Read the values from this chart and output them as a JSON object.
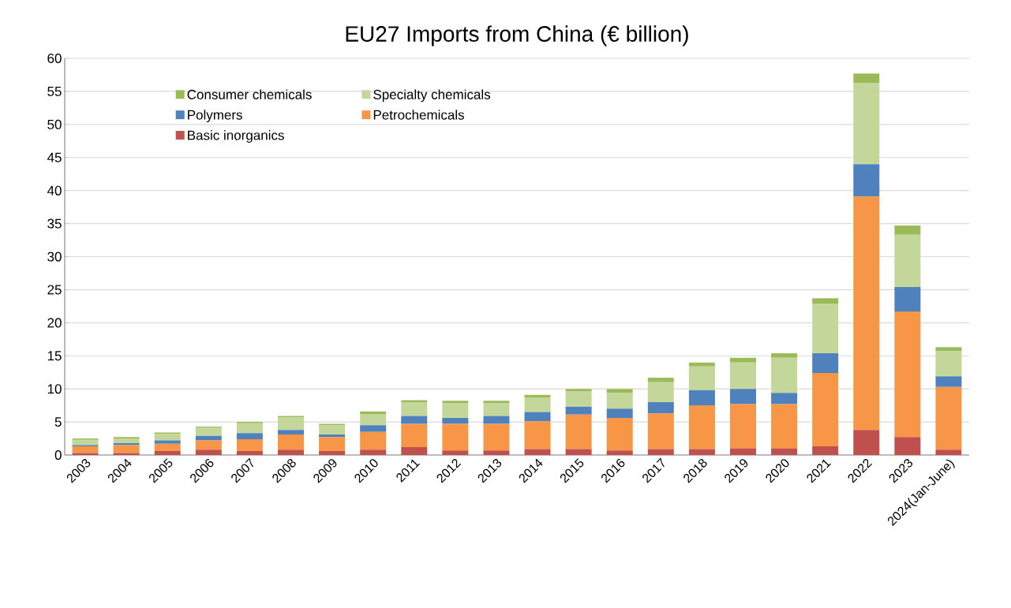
{
  "chart_data": {
    "type": "bar",
    "stacked": true,
    "title": "EU27 Imports from China (€ billion)",
    "categories": [
      "2003",
      "2004",
      "2005",
      "2006",
      "2007",
      "2008",
      "2009",
      "2010",
      "2011",
      "2012",
      "2013",
      "2014",
      "2015",
      "2016",
      "2017",
      "2018",
      "2019",
      "2020",
      "2021",
      "2022",
      "2023",
      "2024(Jan-June)"
    ],
    "series": [
      {
        "name": "Basic inorganics",
        "color": "#c0504d",
        "values": [
          0.3,
          0.3,
          0.6,
          0.8,
          0.6,
          0.8,
          0.6,
          0.8,
          1.2,
          0.7,
          0.7,
          0.9,
          0.9,
          0.7,
          0.9,
          0.9,
          1.0,
          1.0,
          1.3,
          3.8,
          2.7,
          0.8
        ]
      },
      {
        "name": "Petrochemicals",
        "color": "#f79646",
        "values": [
          1.0,
          1.2,
          1.1,
          1.4,
          1.8,
          2.3,
          2.1,
          2.7,
          3.5,
          4.0,
          4.0,
          4.2,
          5.2,
          4.9,
          5.4,
          6.6,
          6.7,
          6.7,
          11.1,
          35.3,
          19.0,
          9.5
        ]
      },
      {
        "name": "Polymers",
        "color": "#4f81bd",
        "values": [
          0.2,
          0.3,
          0.5,
          0.7,
          0.9,
          0.7,
          0.4,
          1.0,
          1.2,
          0.9,
          1.2,
          1.4,
          1.2,
          1.4,
          1.7,
          2.3,
          2.3,
          1.7,
          3.0,
          4.9,
          3.7,
          1.6
        ]
      },
      {
        "name": "Specialty chemicals",
        "color": "#c4d79b",
        "values": [
          0.8,
          0.7,
          1.0,
          1.2,
          1.5,
          1.9,
          1.4,
          1.7,
          2.1,
          2.2,
          1.9,
          2.2,
          2.3,
          2.4,
          3.0,
          3.6,
          4.0,
          5.3,
          7.5,
          12.3,
          7.9,
          3.8
        ]
      },
      {
        "name": "Consumer chemicals",
        "color": "#9bbb59",
        "values": [
          0.2,
          0.2,
          0.2,
          0.2,
          0.2,
          0.2,
          0.2,
          0.4,
          0.3,
          0.4,
          0.4,
          0.4,
          0.4,
          0.6,
          0.7,
          0.6,
          0.7,
          0.7,
          0.8,
          1.4,
          1.4,
          0.6
        ]
      }
    ],
    "ylim": [
      0,
      60
    ],
    "yticks": [
      0,
      5,
      10,
      15,
      20,
      25,
      30,
      35,
      40,
      45,
      50,
      55,
      60
    ],
    "grid": "y",
    "legend": "top left"
  }
}
